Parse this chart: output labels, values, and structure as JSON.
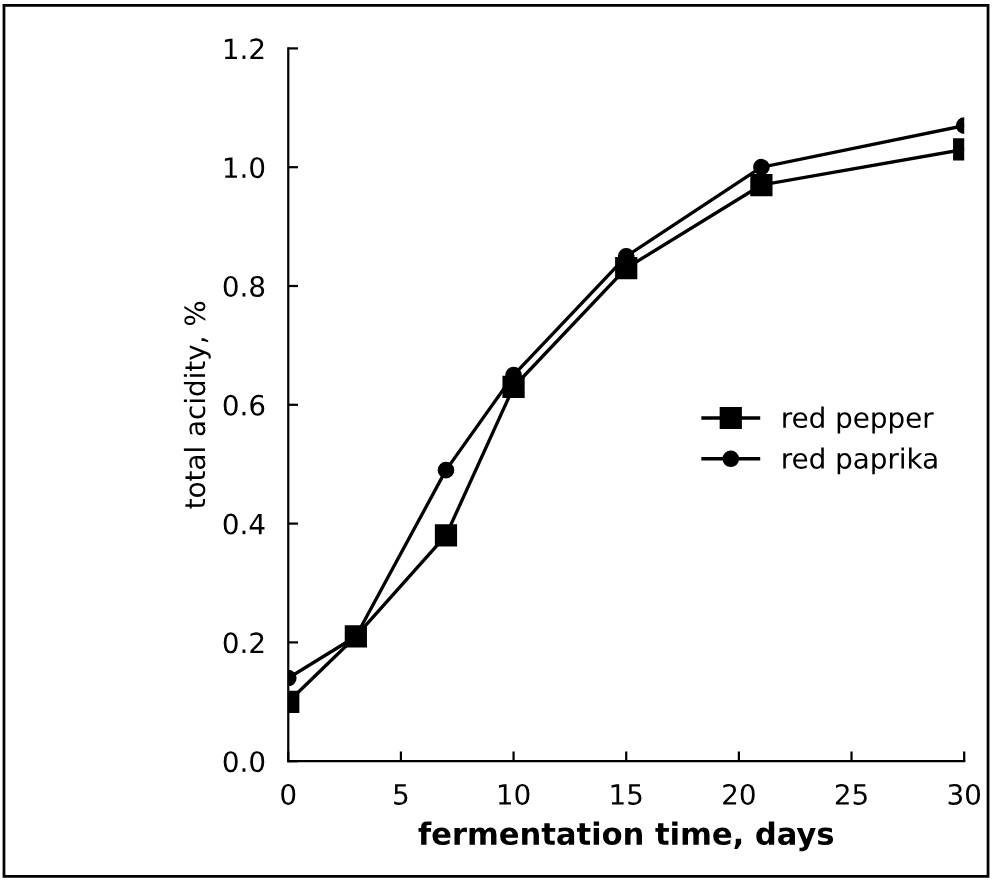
{
  "chart_data": {
    "type": "line",
    "xlabel": "fermentation time, days",
    "ylabel": "total acidity, %",
    "x": [
      0,
      3,
      7,
      10,
      15,
      21,
      30
    ],
    "series": [
      {
        "name": "red pepper",
        "color": "#000000",
        "marker": "square",
        "values": [
          0.1,
          0.21,
          0.38,
          0.63,
          0.83,
          0.97,
          1.03
        ]
      },
      {
        "name": "red paprika",
        "color": "#000000",
        "marker": "circle",
        "values": [
          0.14,
          0.21,
          0.49,
          0.65,
          0.85,
          1.0,
          1.07
        ]
      }
    ],
    "xlim": [
      0,
      30
    ],
    "xticks": [
      0,
      5,
      10,
      15,
      20,
      25,
      30
    ],
    "ylim": [
      0,
      1.2
    ],
    "yticks": [
      {
        "value": 0,
        "label": "0.0"
      },
      {
        "value": 0.2,
        "label": "0.2"
      },
      {
        "value": 0.4,
        "label": "0.4"
      },
      {
        "value": 0.6,
        "label": "0.6"
      },
      {
        "value": 0.8,
        "label": "0.8"
      },
      {
        "value": 1.0,
        "label": "1.0"
      },
      {
        "value": 1.2,
        "label": "1.2"
      }
    ],
    "grid": false,
    "legend": "right",
    "line_style": "solid"
  }
}
